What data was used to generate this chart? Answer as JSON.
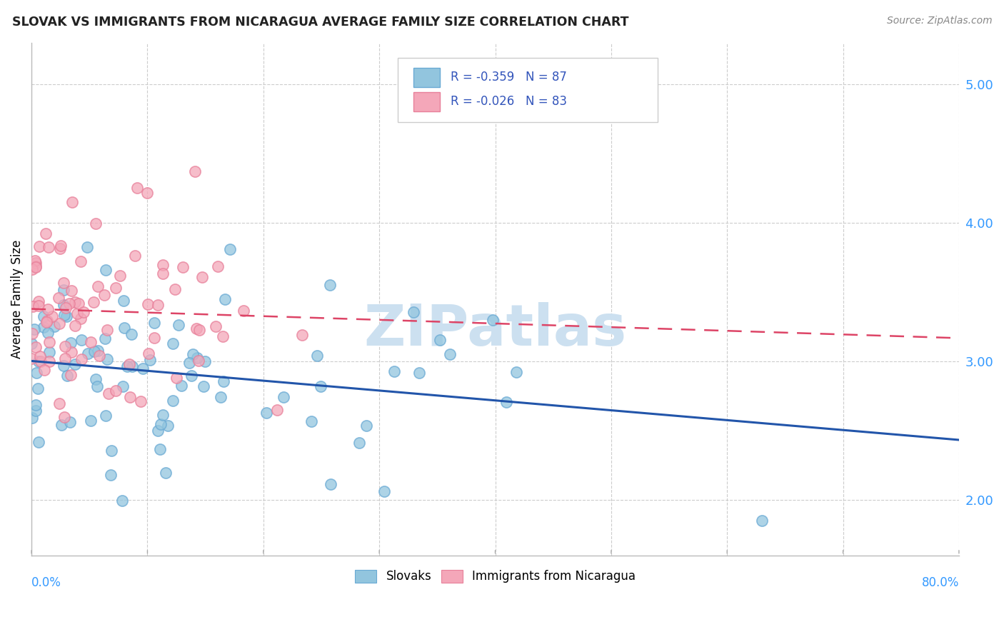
{
  "title": "SLOVAK VS IMMIGRANTS FROM NICARAGUA AVERAGE FAMILY SIZE CORRELATION CHART",
  "source": "Source: ZipAtlas.com",
  "ylabel": "Average Family Size",
  "yticks": [
    2.0,
    3.0,
    4.0,
    5.0
  ],
  "xlim": [
    0.0,
    0.8
  ],
  "ylim": [
    1.6,
    5.3
  ],
  "color_slovak": "#92c5de",
  "color_slovak_edge": "#6aaad4",
  "color_nicaragua": "#f4a7b9",
  "color_nicaragua_edge": "#e8809a",
  "color_trendline_slovak": "#2255aa",
  "color_trendline_nicaragua": "#dd4466",
  "background_color": "#ffffff",
  "watermark_color": "#cce0f0",
  "slovak_R": -0.359,
  "slovak_N": 87,
  "nicaragua_R": -0.026,
  "nicaragua_N": 83,
  "legend_text_color": "#3355bb",
  "ytick_color": "#3399ff",
  "xlabel_color": "#3399ff"
}
